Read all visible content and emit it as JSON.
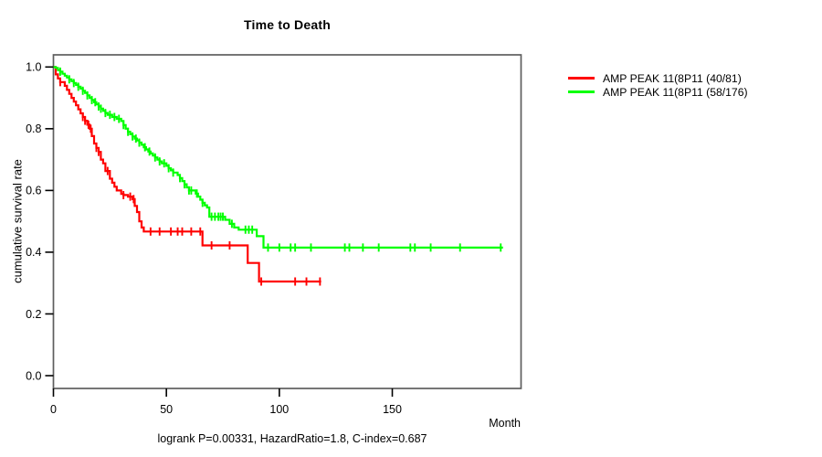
{
  "title": "Time to Death",
  "y_axis_label": "cumulative survival rate",
  "x_axis_unit": "Month",
  "footer_stats": "logrank P=0.00331, HazardRatio=1.8, C-index=0.687",
  "colors": {
    "background": "#ffffff",
    "box_border": "#5e5e5e",
    "tick": "#000000",
    "red_series": "#ff0000",
    "green_series": "#00ff00"
  },
  "chart_data": {
    "type": "line",
    "variant": "kaplan-meier-step",
    "title": "Time to Death",
    "xlabel": "Month",
    "ylabel": "cumulative survival rate",
    "annotation": "logrank P=0.00331, HazardRatio=1.8, C-index=0.687",
    "xlim": [
      0,
      207
    ],
    "ylim": [
      0,
      1.04
    ],
    "x_ticks": [
      0,
      50,
      100,
      150
    ],
    "y_ticks": [
      0,
      0.2,
      0.4,
      0.6,
      0.8,
      1.0
    ],
    "grid": false,
    "legend_position": "right-outside",
    "series": [
      {
        "name": "AMP PEAK 11(8P11 (40/81)",
        "events_over_n": "40/81",
        "color": "#ff0000",
        "steps": [
          [
            0,
            1.0
          ],
          [
            1,
            0.976
          ],
          [
            2,
            0.963
          ],
          [
            3,
            0.951
          ],
          [
            5,
            0.939
          ],
          [
            6,
            0.926
          ],
          [
            7,
            0.913
          ],
          [
            8,
            0.9
          ],
          [
            9,
            0.888
          ],
          [
            10,
            0.876
          ],
          [
            11,
            0.863
          ],
          [
            12,
            0.85
          ],
          [
            13,
            0.838
          ],
          [
            14,
            0.826
          ],
          [
            15,
            0.813
          ],
          [
            16,
            0.8
          ],
          [
            17,
            0.776
          ],
          [
            18,
            0.752
          ],
          [
            19,
            0.738
          ],
          [
            20,
            0.725
          ],
          [
            21,
            0.7
          ],
          [
            22,
            0.688
          ],
          [
            23,
            0.663
          ],
          [
            25,
            0.638
          ],
          [
            26,
            0.625
          ],
          [
            27,
            0.612
          ],
          [
            28,
            0.6
          ],
          [
            30,
            0.589
          ],
          [
            31,
            0.585
          ],
          [
            33,
            0.58
          ],
          [
            35,
            0.572
          ],
          [
            36,
            0.55
          ],
          [
            37,
            0.53
          ],
          [
            38,
            0.5
          ],
          [
            39,
            0.48
          ],
          [
            40,
            0.467
          ],
          [
            66,
            0.422
          ],
          [
            86,
            0.365
          ],
          [
            91,
            0.305
          ]
        ],
        "end_month": 118.5,
        "censor_months": [
          3,
          13,
          14,
          15.5,
          16.5,
          19,
          20,
          24,
          31,
          34,
          35.5,
          43,
          47,
          52,
          55,
          57,
          61,
          65,
          70,
          78,
          92,
          107,
          112,
          118
        ]
      },
      {
        "name": "AMP PEAK 11(8P11 (58/176)",
        "events_over_n": "58/176",
        "color": "#00ff00",
        "steps": [
          [
            0,
            1.0
          ],
          [
            1,
            0.997
          ],
          [
            2,
            0.99
          ],
          [
            3,
            0.985
          ],
          [
            4,
            0.978
          ],
          [
            5,
            0.972
          ],
          [
            6,
            0.966
          ],
          [
            7,
            0.96
          ],
          [
            8,
            0.954
          ],
          [
            9,
            0.948
          ],
          [
            10,
            0.942
          ],
          [
            11,
            0.936
          ],
          [
            12,
            0.93
          ],
          [
            13,
            0.923
          ],
          [
            14,
            0.916
          ],
          [
            15,
            0.908
          ],
          [
            16,
            0.9
          ],
          [
            17,
            0.893
          ],
          [
            18,
            0.886
          ],
          [
            19,
            0.879
          ],
          [
            20,
            0.872
          ],
          [
            21,
            0.865
          ],
          [
            22,
            0.858
          ],
          [
            23,
            0.851
          ],
          [
            24,
            0.845
          ],
          [
            26,
            0.838
          ],
          [
            28,
            0.832
          ],
          [
            30,
            0.825
          ],
          [
            31,
            0.812
          ],
          [
            32,
            0.8
          ],
          [
            33,
            0.79
          ],
          [
            34,
            0.782
          ],
          [
            35,
            0.775
          ],
          [
            36,
            0.768
          ],
          [
            37,
            0.762
          ],
          [
            38,
            0.755
          ],
          [
            39,
            0.748
          ],
          [
            40,
            0.74
          ],
          [
            41,
            0.733
          ],
          [
            42,
            0.726
          ],
          [
            43,
            0.72
          ],
          [
            44,
            0.713
          ],
          [
            45,
            0.707
          ],
          [
            46,
            0.7
          ],
          [
            47,
            0.694
          ],
          [
            48,
            0.688
          ],
          [
            50,
            0.68
          ],
          [
            51,
            0.672
          ],
          [
            52,
            0.665
          ],
          [
            53,
            0.658
          ],
          [
            55,
            0.65
          ],
          [
            56,
            0.64
          ],
          [
            57,
            0.63
          ],
          [
            58,
            0.62
          ],
          [
            59,
            0.61
          ],
          [
            60,
            0.6
          ],
          [
            63,
            0.59
          ],
          [
            64,
            0.58
          ],
          [
            65,
            0.57
          ],
          [
            66,
            0.56
          ],
          [
            67,
            0.552
          ],
          [
            68,
            0.545
          ],
          [
            69,
            0.515
          ],
          [
            76,
            0.505
          ],
          [
            78,
            0.492
          ],
          [
            80,
            0.48
          ],
          [
            82,
            0.473
          ],
          [
            90,
            0.452
          ],
          [
            93,
            0.415
          ]
        ],
        "end_month": 199,
        "censor_months": [
          3,
          7,
          9,
          11,
          13,
          15,
          17,
          18.5,
          20,
          21,
          23,
          25,
          27,
          29,
          31,
          33,
          35,
          36.5,
          38,
          40.5,
          42.5,
          45,
          47,
          49,
          51,
          53,
          56,
          58,
          60,
          61,
          63.5,
          66,
          70,
          71.5,
          73,
          74,
          75,
          79,
          85,
          86.5,
          88,
          95,
          100,
          105,
          107,
          114,
          129,
          131,
          137,
          144,
          158,
          160,
          167,
          180,
          198
        ]
      }
    ]
  }
}
